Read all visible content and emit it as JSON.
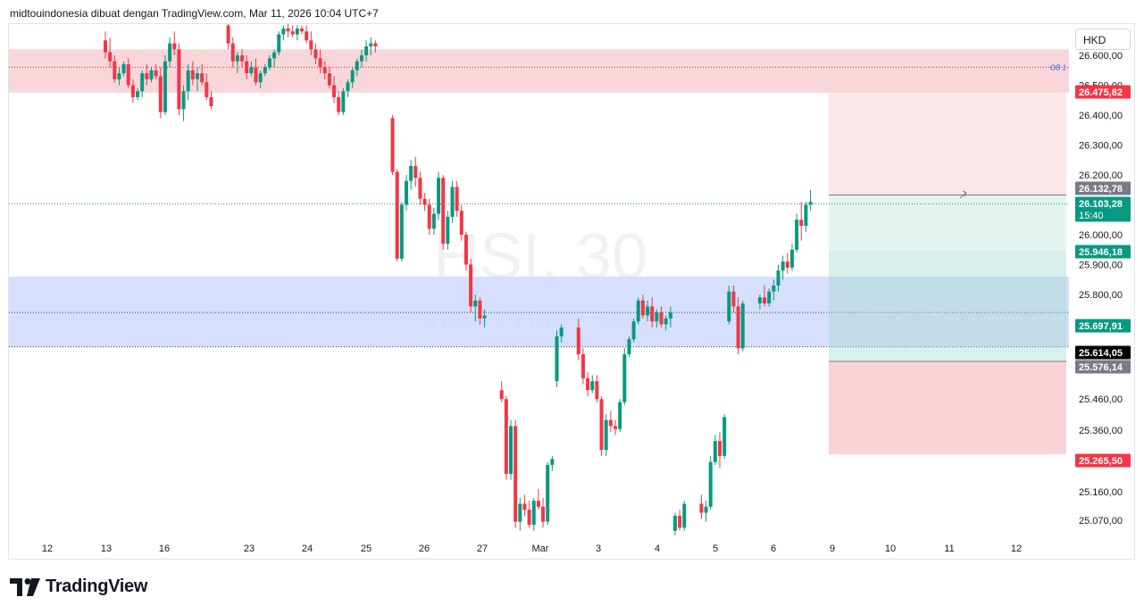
{
  "header": {
    "attribution": "midtouindonesia dibuat dengan TradingView.com, Mar 11, 2026 10:04 UTC+7"
  },
  "currency": "HKD",
  "watermark": {
    "symbol": "HSI, 30",
    "name": "Indeks Hang Seng"
  },
  "branding": {
    "name": "TradingView"
  },
  "chart_data": {
    "type": "candlestick",
    "symbol": "HSI",
    "interval": "30",
    "currency": "HKD",
    "x_ticks": [
      "12",
      "13",
      "16",
      "23",
      "24",
      "25",
      "26",
      "27",
      "Mar",
      "3",
      "4",
      "5",
      "6",
      "9",
      "10",
      "11",
      "12"
    ],
    "y_ticks": [
      "26.600,00",
      "26.500,00",
      "26.400,00",
      "26.300,00",
      "26.200,00",
      "26.000,00",
      "25.900,00",
      "25.800,00",
      "25.460,00",
      "25.360,00",
      "25.160,00",
      "25.070,00"
    ],
    "price_labels": [
      {
        "text": "26.475,82",
        "color": "#f23645"
      },
      {
        "text": "26.132,78",
        "color": "#787b86"
      },
      {
        "text": "26.103,28",
        "sub": "15:40",
        "color": "#089981"
      },
      {
        "text": "25.946,18",
        "color": "#089981"
      },
      {
        "text": "25.697,91",
        "color": "#089981"
      },
      {
        "text": "25.614,05",
        "color": "#000000"
      },
      {
        "text": "25.576,14",
        "color": "#787b86"
      },
      {
        "text": "25.265,50",
        "color": "#f23645"
      }
    ],
    "zones": [
      {
        "name": "supply zone",
        "color": "#f7c5ca",
        "top": 26620,
        "bottom": 26475,
        "mid": 26560,
        "label": "OB 1"
      },
      {
        "name": "demand zone",
        "color": "#cfd9fb",
        "top": 25860,
        "bottom": 25625,
        "mid": 25740
      }
    ],
    "position_tool": {
      "entry": 25576.14,
      "target_top": 26475.82,
      "target_mid": 26132.78,
      "stop_band": 25946.18,
      "stop": 25265.5
    },
    "last_price": 26103.28,
    "candles": [
      [
        26650,
        26680,
        26590,
        26610
      ],
      [
        26610,
        26660,
        26560,
        26580
      ],
      [
        26580,
        26600,
        26510,
        26520
      ],
      [
        26520,
        26560,
        26500,
        26540
      ],
      [
        26540,
        26580,
        26530,
        26570
      ],
      [
        26570,
        26590,
        26490,
        26500
      ],
      [
        26500,
        26520,
        26440,
        26460
      ],
      [
        26460,
        26490,
        26450,
        26480
      ],
      [
        26480,
        26550,
        26460,
        26540
      ],
      [
        26540,
        26570,
        26500,
        26520
      ],
      [
        26520,
        26560,
        26510,
        26550
      ],
      [
        26550,
        26570,
        26520,
        26530
      ],
      [
        26530,
        26560,
        26390,
        26410
      ],
      [
        26410,
        26600,
        26400,
        26580
      ],
      [
        26580,
        26660,
        26560,
        26640
      ],
      [
        26640,
        26680,
        26600,
        26620
      ],
      [
        26620,
        26640,
        26400,
        26420
      ],
      [
        26420,
        26500,
        26380,
        26480
      ],
      [
        26480,
        26570,
        26450,
        26550
      ],
      [
        26550,
        26580,
        26500,
        26520
      ],
      [
        26520,
        26560,
        26480,
        26540
      ],
      [
        26540,
        26570,
        26500,
        26510
      ],
      [
        26510,
        26540,
        26450,
        26460
      ],
      [
        26460,
        26480,
        26420,
        26430
      ],
      [
        26700,
        26720,
        26620,
        26640
      ],
      [
        26640,
        26660,
        26560,
        26580
      ],
      [
        26580,
        26610,
        26540,
        26600
      ],
      [
        26600,
        26620,
        26560,
        26580
      ],
      [
        26580,
        26600,
        26520,
        26540
      ],
      [
        26540,
        26580,
        26530,
        26560
      ],
      [
        26560,
        26590,
        26500,
        26510
      ],
      [
        26510,
        26550,
        26490,
        26540
      ],
      [
        26540,
        26570,
        26530,
        26560
      ],
      [
        26560,
        26600,
        26550,
        26590
      ],
      [
        26590,
        26620,
        26560,
        26610
      ],
      [
        26610,
        26680,
        26600,
        26670
      ],
      [
        26670,
        26700,
        26650,
        26690
      ],
      [
        26690,
        26710,
        26660,
        26680
      ],
      [
        26680,
        26700,
        26660,
        26670
      ],
      [
        26670,
        26700,
        26650,
        26690
      ],
      [
        26690,
        26700,
        26670,
        26680
      ],
      [
        26680,
        26700,
        26640,
        26650
      ],
      [
        26650,
        26680,
        26600,
        26620
      ],
      [
        26620,
        26640,
        26570,
        26590
      ],
      [
        26590,
        26620,
        26540,
        26560
      ],
      [
        26560,
        26580,
        26520,
        26540
      ],
      [
        26540,
        26560,
        26490,
        26500
      ],
      [
        26500,
        26530,
        26440,
        26460
      ],
      [
        26460,
        26480,
        26400,
        26410
      ],
      [
        26410,
        26490,
        26400,
        26480
      ],
      [
        26480,
        26520,
        26460,
        26510
      ],
      [
        26510,
        26560,
        26490,
        26550
      ],
      [
        26550,
        26590,
        26530,
        26580
      ],
      [
        26580,
        26620,
        26560,
        26600
      ],
      [
        26600,
        26650,
        26580,
        26630
      ],
      [
        26630,
        26660,
        26600,
        26640
      ],
      [
        26640,
        26650,
        26610,
        26630
      ],
      [
        26390,
        26400,
        26200,
        26210
      ],
      [
        26210,
        26220,
        25910,
        25920
      ],
      [
        25920,
        26110,
        25910,
        26100
      ],
      [
        26100,
        26200,
        26080,
        26180
      ],
      [
        26180,
        26250,
        26150,
        26230
      ],
      [
        26230,
        26260,
        26160,
        26190
      ],
      [
        26190,
        26210,
        26100,
        26120
      ],
      [
        26120,
        26140,
        26080,
        26100
      ],
      [
        26100,
        26120,
        26000,
        26020
      ],
      [
        26020,
        26090,
        26000,
        26070
      ],
      [
        26070,
        26210,
        26050,
        26190
      ],
      [
        26190,
        26200,
        25950,
        25970
      ],
      [
        25970,
        26080,
        25950,
        26060
      ],
      [
        26060,
        26180,
        26040,
        26160
      ],
      [
        26160,
        26180,
        26060,
        26080
      ],
      [
        26080,
        26100,
        25980,
        26000
      ],
      [
        26000,
        26010,
        25880,
        25900
      ],
      [
        25900,
        25920,
        25740,
        25760
      ],
      [
        25760,
        25800,
        25710,
        25780
      ],
      [
        25780,
        25790,
        25700,
        25720
      ],
      [
        25720,
        25750,
        25690,
        25730
      ],
      [
        25480,
        25510,
        25440,
        25450
      ],
      [
        25450,
        25460,
        25180,
        25200
      ],
      [
        25200,
        25380,
        25180,
        25360
      ],
      [
        25360,
        25380,
        25020,
        25040
      ],
      [
        25040,
        25120,
        25010,
        25100
      ],
      [
        25100,
        25130,
        25060,
        25080
      ],
      [
        25080,
        25110,
        25020,
        25030
      ],
      [
        25030,
        25120,
        25010,
        25110
      ],
      [
        25110,
        25150,
        25080,
        25090
      ],
      [
        25090,
        25120,
        25020,
        25040
      ],
      [
        25040,
        25240,
        25030,
        25230
      ],
      [
        25230,
        25260,
        25210,
        25250
      ],
      [
        25510,
        25680,
        25490,
        25660
      ],
      [
        25660,
        25700,
        25640,
        25690
      ],
      [
        25690,
        25720,
        25580,
        25600
      ],
      [
        25600,
        25620,
        25500,
        25520
      ],
      [
        25520,
        25540,
        25460,
        25480
      ],
      [
        25480,
        25530,
        25470,
        25510
      ],
      [
        25510,
        25530,
        25440,
        25450
      ],
      [
        25450,
        25460,
        25260,
        25280
      ],
      [
        25280,
        25400,
        25260,
        25380
      ],
      [
        25380,
        25410,
        25340,
        25360
      ],
      [
        25360,
        25380,
        25330,
        25350
      ],
      [
        25350,
        25450,
        25340,
        25440
      ],
      [
        25440,
        25620,
        25430,
        25600
      ],
      [
        25600,
        25660,
        25590,
        25650
      ],
      [
        25650,
        25720,
        25640,
        25710
      ],
      [
        25710,
        25790,
        25700,
        25780
      ],
      [
        25780,
        25800,
        25720,
        25730
      ],
      [
        25730,
        25780,
        25710,
        25760
      ],
      [
        25760,
        25790,
        25690,
        25710
      ],
      [
        25710,
        25750,
        25690,
        25740
      ],
      [
        25740,
        25760,
        25690,
        25700
      ],
      [
        25700,
        25730,
        25680,
        25720
      ],
      [
        25720,
        25760,
        25690,
        25740
      ],
      [
        25010,
        25070,
        24990,
        25060
      ],
      [
        25060,
        25080,
        25010,
        25020
      ],
      [
        25020,
        25110,
        25010,
        25100
      ],
      [
        25100,
        25130,
        25050,
        25070
      ],
      [
        25070,
        25110,
        25040,
        25090
      ],
      [
        25090,
        25260,
        25080,
        25240
      ],
      [
        25240,
        25330,
        25230,
        25310
      ],
      [
        25310,
        25340,
        25220,
        25260
      ],
      [
        25260,
        25400,
        25250,
        25390
      ],
      [
        25710,
        25830,
        25700,
        25810
      ],
      [
        25810,
        25830,
        25740,
        25760
      ],
      [
        25760,
        25790,
        25600,
        25620
      ],
      [
        25620,
        25780,
        25610,
        25770
      ],
      [
        25770,
        25800,
        25750,
        25790
      ],
      [
        25790,
        25830,
        25760,
        25770
      ],
      [
        25770,
        25820,
        25760,
        25810
      ],
      [
        25810,
        25850,
        25780,
        25830
      ],
      [
        25830,
        25900,
        25810,
        25880
      ],
      [
        25880,
        25930,
        25850,
        25910
      ],
      [
        25910,
        25940,
        25870,
        25890
      ],
      [
        25890,
        25970,
        25880,
        25950
      ],
      [
        25950,
        26070,
        25940,
        26050
      ],
      [
        26050,
        26110,
        25980,
        26030
      ],
      [
        26030,
        26110,
        26010,
        26100
      ],
      [
        26100,
        26150,
        26080,
        26110
      ]
    ]
  }
}
